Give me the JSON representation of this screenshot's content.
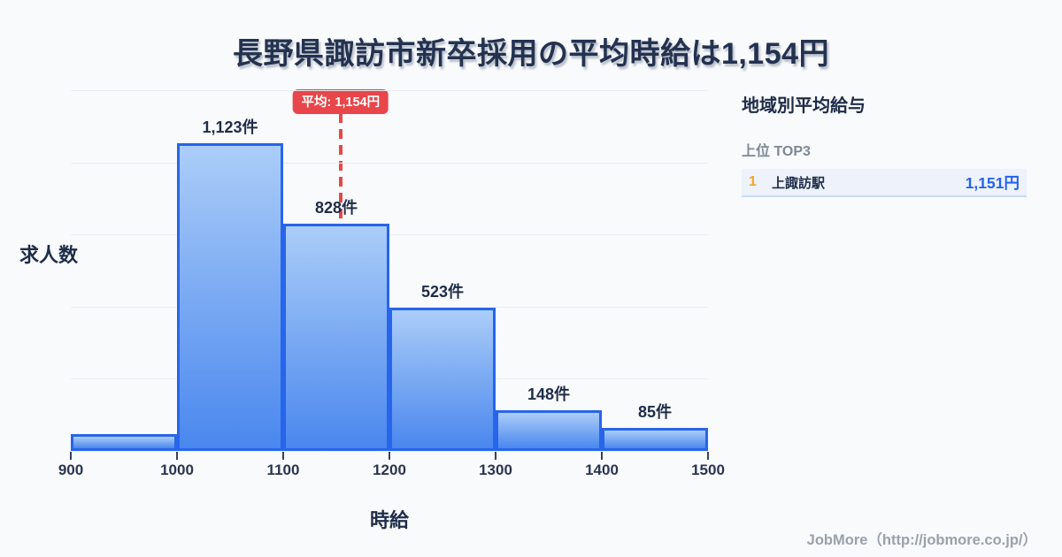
{
  "title": "長野県諏訪市新卒採用の平均時給は1,154円",
  "chart_data": {
    "type": "bar",
    "title": "長野県諏訪市新卒採用の平均時給は1,154円",
    "xlabel": "時給",
    "ylabel": "求人数",
    "bin_edges": [
      900,
      1000,
      1100,
      1200,
      1300,
      1400,
      1500
    ],
    "categories": [
      "900-1000",
      "1000-1100",
      "1100-1200",
      "1200-1300",
      "1300-1400",
      "1400-1500"
    ],
    "values": [
      60,
      1123,
      828,
      523,
      148,
      85
    ],
    "bar_labels": [
      "",
      "1,123件",
      "828件",
      "523件",
      "148件",
      "85件"
    ],
    "x_ticks": [
      "900",
      "1000",
      "1100",
      "1200",
      "1300",
      "1400",
      "1500"
    ],
    "ylim": [
      0,
      1316
    ],
    "grid": true,
    "mean_line": {
      "value": 1154,
      "label": "平均: 1,154円"
    }
  },
  "panel": {
    "title": "地域別平均給与",
    "subtitle": "上位 TOP3",
    "rows": [
      {
        "rank": "1",
        "name": "上諏訪駅",
        "value": "1,151円"
      }
    ]
  },
  "footer": {
    "credit": "JobMore（http://jobmore.co.jp/）"
  },
  "colors": {
    "background": "#f8fafc",
    "title_text": "#243250",
    "dark_text": "#1f2c49",
    "tick_text": "#2a3550",
    "grid_line": "#e9edf2",
    "bar_border": "#2765ea",
    "bar_fill_top": "#abcdf8",
    "bar_fill_bottom": "#4a87ee",
    "average_red": "#e8464a",
    "rank_amber": "#f0a828",
    "value_blue": "#2563eb",
    "panel_row_bg": "#edf2fb",
    "row_border": "#c8dcf4",
    "muted_gray": "#7e8896",
    "footer_gray": "#9aa1ab"
  }
}
